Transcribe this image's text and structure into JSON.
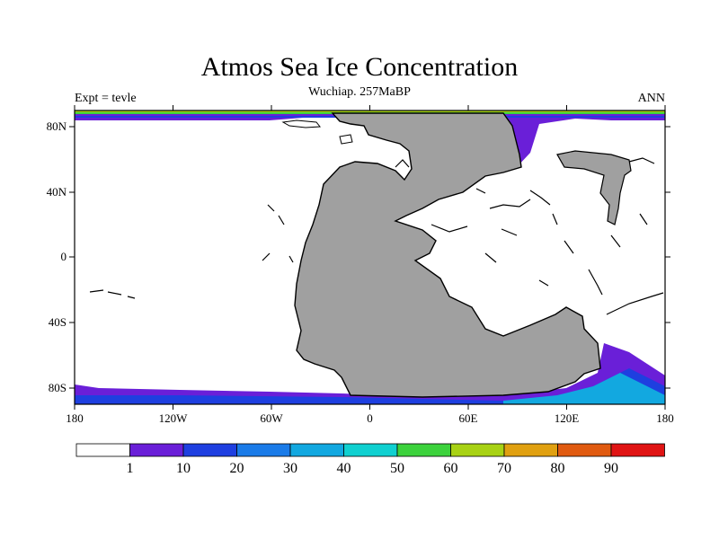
{
  "title": "Atmos Sea Ice Concentration",
  "subtitle_center": "Wuchiap. 257MaBP",
  "subtitle_left": "Expt = tevle",
  "subtitle_right": "ANN",
  "x_ticks": [
    "180",
    "120W",
    "60W",
    "0",
    "60E",
    "120E",
    "180"
  ],
  "y_ticks": [
    "80N",
    "40N",
    "0",
    "40S",
    "80S"
  ],
  "colorbar": {
    "labels": [
      "1",
      "10",
      "20",
      "30",
      "40",
      "50",
      "60",
      "70",
      "80",
      "90"
    ],
    "colors": [
      "#ffffff",
      "#6a1fd8",
      "#1e3fe0",
      "#1a7be8",
      "#12a8e0",
      "#10d0d0",
      "#3cd23c",
      "#a8d214",
      "#e0a010",
      "#e05a10",
      "#e01414"
    ]
  },
  "map_colors": {
    "land": "#a0a0a0",
    "ocean": "#ffffff",
    "ice_low": "#6a1fd8",
    "ice_mid": "#1e3fe0",
    "ice_med": "#1a7be8",
    "ice_high": "#12a8e0"
  }
}
